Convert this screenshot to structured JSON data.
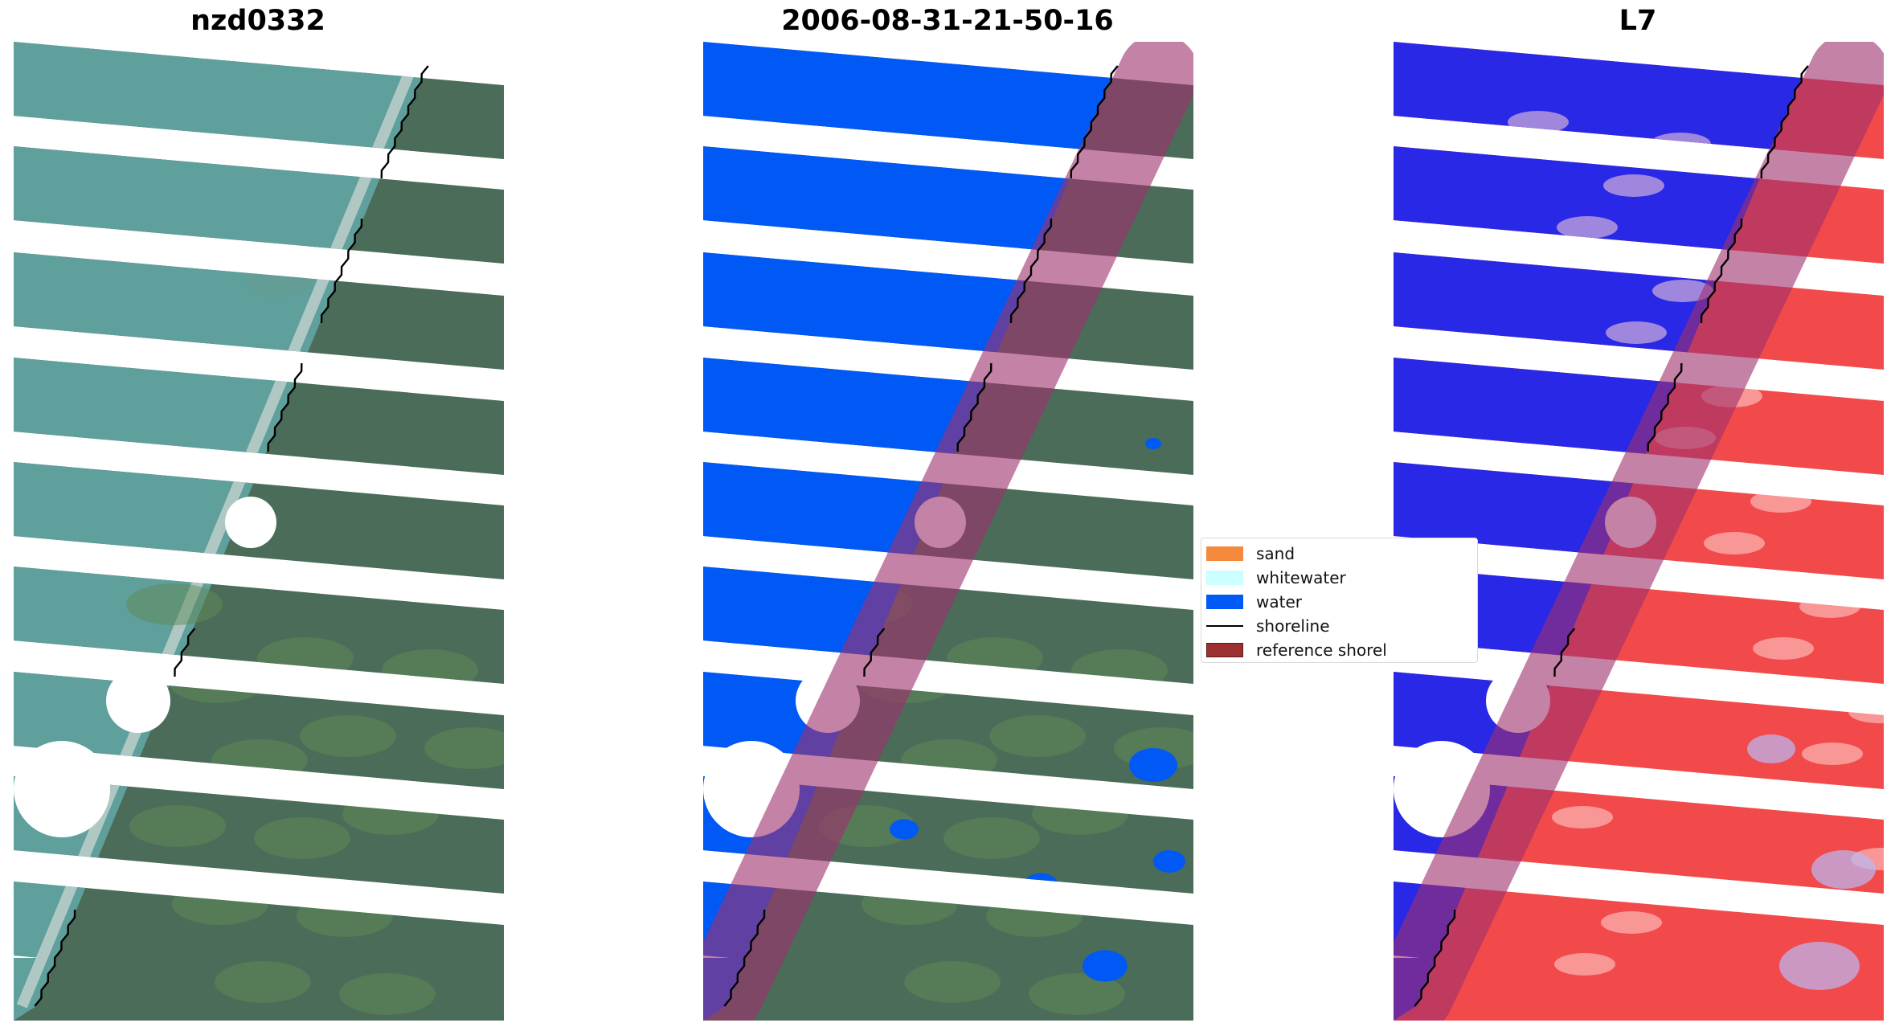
{
  "panels": [
    {
      "title": "nzd0332",
      "kind": "rgb"
    },
    {
      "title": "2006-08-31-21-50-16",
      "kind": "classified"
    },
    {
      "title": "L7",
      "kind": "index"
    }
  ],
  "legend": {
    "items": [
      {
        "label": "sand",
        "color": "#f58a3d",
        "type": "patch"
      },
      {
        "label": "whitewater",
        "color": "#ccffff",
        "type": "patch"
      },
      {
        "label": "water",
        "color": "#0059f5",
        "type": "patch"
      },
      {
        "label": "shoreline",
        "color": "#000000",
        "type": "line"
      },
      {
        "label": "reference shorel",
        "color": "#9c3030",
        "type": "patch"
      }
    ]
  },
  "colors": {
    "sea_rgb": "#5f9f9c",
    "land_rgb": "#4a6c58",
    "water_class": "#0059f5",
    "buffer": "#a0306e",
    "index_water": "#2828e6",
    "index_land": "#f24a4a",
    "shoreline": "#000000"
  }
}
